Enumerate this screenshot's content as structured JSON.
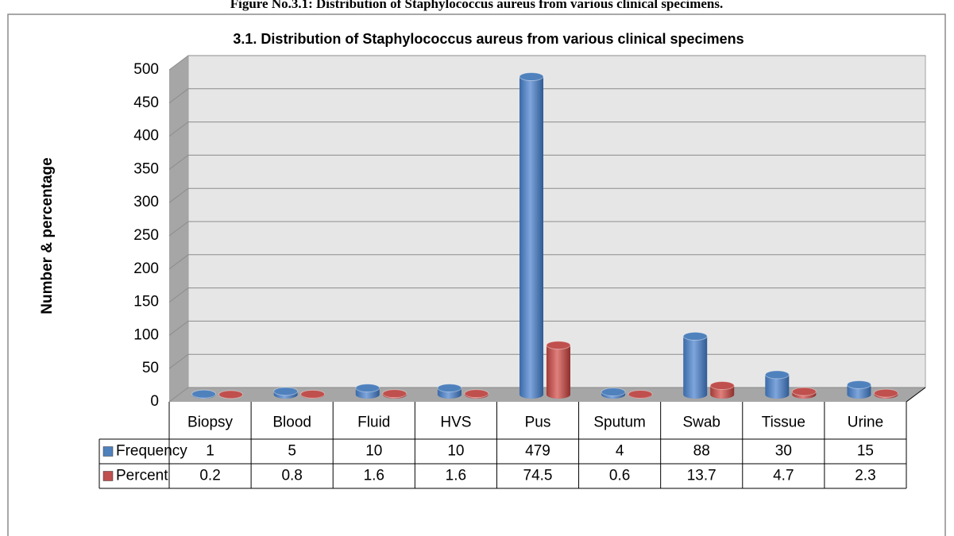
{
  "caption": "Figure No.3.1: Distribution of Staphylococcus aureus from various clinical specimens.",
  "chart_data": {
    "type": "bar3d",
    "title": "3.1. Distribution of Staphylococcus aureus from various clinical specimens",
    "y_label": "Number & percentage",
    "categories": [
      "Biopsy",
      "Blood",
      "Fluid",
      "HVS",
      "Pus",
      "Sputum",
      "Swab",
      "Tissue",
      "Urine"
    ],
    "series": [
      {
        "name": "Frequency",
        "color": "#4f81bd",
        "values": [
          1,
          5,
          10,
          10,
          479,
          4,
          88,
          30,
          15
        ]
      },
      {
        "name": "Percent",
        "color": "#c0504d",
        "values": [
          0.2,
          0.8,
          1.6,
          1.6,
          74.5,
          0.6,
          13.7,
          4.7,
          2.3
        ]
      }
    ],
    "ylim": [
      0,
      500
    ],
    "yticks": [
      0,
      50,
      100,
      150,
      200,
      250,
      300,
      350,
      400,
      450,
      500
    ],
    "grid": true,
    "data_table": true
  }
}
